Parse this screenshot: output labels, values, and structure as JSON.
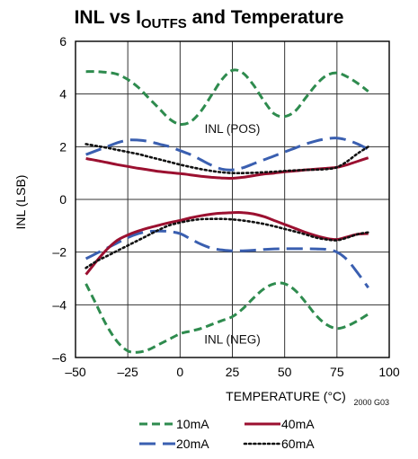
{
  "chart_data": {
    "type": "line",
    "title": "INL vs I",
    "title_subscript": "OUTFS",
    "title_suffix": " and Temperature",
    "xlabel": "TEMPERATURE (°C)",
    "ylabel": "INL (LSB)",
    "xlim": [
      -50,
      100
    ],
    "ylim": [
      -6,
      6
    ],
    "x_ticks": [
      -50,
      -25,
      0,
      25,
      50,
      75,
      100
    ],
    "x_tick_labels": [
      "–50",
      "–25",
      "0",
      "25",
      "50",
      "75",
      "100"
    ],
    "y_ticks": [
      -6,
      -4,
      -2,
      0,
      2,
      4,
      6
    ],
    "y_tick_labels": [
      "–6",
      "–4",
      "–2",
      "0",
      "2",
      "4",
      "6"
    ],
    "grid": true,
    "legend_position": "bottom",
    "annotations": [
      {
        "text": "INL (POS)",
        "x": 25,
        "y": 2.7
      },
      {
        "text": "INL (NEG)",
        "x": 25,
        "y": -5.3
      }
    ],
    "note": "2000 G03",
    "series": [
      {
        "name": "10mA",
        "group": "INL (POS)",
        "color": "#2e8b4e",
        "style": "dashed",
        "x": [
          -45,
          -40,
          -35,
          -30,
          -25,
          -20,
          -15,
          -10,
          -5,
          0,
          5,
          10,
          15,
          20,
          25,
          30,
          35,
          40,
          45,
          50,
          55,
          60,
          65,
          70,
          75,
          80,
          85,
          90
        ],
        "y": [
          4.85,
          4.85,
          4.82,
          4.75,
          4.55,
          4.25,
          3.85,
          3.45,
          3.05,
          2.85,
          2.95,
          3.35,
          3.95,
          4.55,
          4.9,
          4.8,
          4.35,
          3.75,
          3.25,
          3.15,
          3.35,
          3.85,
          4.35,
          4.7,
          4.8,
          4.65,
          4.4,
          4.1
        ]
      },
      {
        "name": "10mA",
        "group": "INL (NEG)",
        "color": "#2e8b4e",
        "style": "dashed",
        "x": [
          -45,
          -40,
          -35,
          -30,
          -25,
          -20,
          -15,
          -10,
          -5,
          0,
          5,
          10,
          15,
          20,
          25,
          30,
          35,
          40,
          45,
          50,
          55,
          60,
          65,
          70,
          75,
          80,
          85,
          90
        ],
        "y": [
          -3.2,
          -4.0,
          -4.8,
          -5.4,
          -5.75,
          -5.8,
          -5.7,
          -5.5,
          -5.3,
          -5.1,
          -5.0,
          -4.9,
          -4.75,
          -4.6,
          -4.45,
          -4.15,
          -3.75,
          -3.4,
          -3.2,
          -3.2,
          -3.45,
          -3.9,
          -4.4,
          -4.75,
          -4.9,
          -4.8,
          -4.6,
          -4.35
        ]
      },
      {
        "name": "20mA",
        "group": "INL (POS)",
        "color": "#3a5fb0",
        "style": "longdash",
        "x": [
          -45,
          -40,
          -35,
          -30,
          -25,
          -20,
          -15,
          -10,
          -5,
          0,
          5,
          10,
          15,
          20,
          25,
          30,
          35,
          40,
          45,
          50,
          55,
          60,
          65,
          70,
          75,
          80,
          85,
          90
        ],
        "y": [
          1.7,
          1.85,
          2.0,
          2.15,
          2.25,
          2.25,
          2.2,
          2.1,
          2.0,
          1.85,
          1.7,
          1.5,
          1.3,
          1.15,
          1.12,
          1.2,
          1.35,
          1.5,
          1.65,
          1.8,
          1.95,
          2.1,
          2.22,
          2.3,
          2.33,
          2.25,
          2.1,
          1.9
        ]
      },
      {
        "name": "20mA",
        "group": "INL (NEG)",
        "color": "#3a5fb0",
        "style": "longdash",
        "x": [
          -45,
          -40,
          -35,
          -30,
          -25,
          -20,
          -15,
          -10,
          -5,
          0,
          5,
          10,
          15,
          20,
          25,
          30,
          35,
          40,
          45,
          50,
          55,
          60,
          65,
          70,
          75,
          80,
          85,
          90
        ],
        "y": [
          -2.25,
          -2.05,
          -1.85,
          -1.65,
          -1.45,
          -1.3,
          -1.22,
          -1.2,
          -1.22,
          -1.3,
          -1.5,
          -1.7,
          -1.85,
          -1.92,
          -1.95,
          -1.95,
          -1.93,
          -1.9,
          -1.88,
          -1.87,
          -1.87,
          -1.87,
          -1.88,
          -1.9,
          -2.0,
          -2.3,
          -2.8,
          -3.35
        ]
      },
      {
        "name": "40mA",
        "group": "INL (POS)",
        "color": "#9b1030",
        "style": "solid",
        "x": [
          -45,
          -40,
          -35,
          -30,
          -25,
          -20,
          -15,
          -10,
          -5,
          0,
          5,
          10,
          15,
          20,
          25,
          30,
          35,
          40,
          45,
          50,
          55,
          60,
          65,
          70,
          75,
          80,
          85,
          90
        ],
        "y": [
          1.55,
          1.48,
          1.4,
          1.32,
          1.25,
          1.18,
          1.12,
          1.06,
          1.02,
          0.98,
          0.93,
          0.88,
          0.84,
          0.81,
          0.8,
          0.84,
          0.9,
          0.96,
          1.0,
          1.05,
          1.08,
          1.12,
          1.15,
          1.18,
          1.22,
          1.32,
          1.45,
          1.58
        ]
      },
      {
        "name": "40mA",
        "group": "INL (NEG)",
        "color": "#9b1030",
        "style": "solid",
        "x": [
          -45,
          -40,
          -35,
          -30,
          -25,
          -20,
          -15,
          -10,
          -5,
          0,
          5,
          10,
          15,
          20,
          25,
          30,
          35,
          40,
          45,
          50,
          55,
          60,
          65,
          70,
          75,
          80,
          85,
          90
        ],
        "y": [
          -2.85,
          -2.35,
          -1.9,
          -1.55,
          -1.35,
          -1.2,
          -1.08,
          -0.98,
          -0.88,
          -0.8,
          -0.7,
          -0.62,
          -0.56,
          -0.52,
          -0.5,
          -0.5,
          -0.55,
          -0.65,
          -0.8,
          -0.95,
          -1.1,
          -1.25,
          -1.38,
          -1.48,
          -1.52,
          -1.42,
          -1.32,
          -1.3
        ]
      },
      {
        "name": "60mA",
        "group": "INL (POS)",
        "color": "#111111",
        "style": "dotted",
        "x": [
          -45,
          -40,
          -35,
          -30,
          -25,
          -20,
          -15,
          -10,
          -5,
          0,
          5,
          10,
          15,
          20,
          25,
          30,
          35,
          40,
          45,
          50,
          55,
          60,
          65,
          70,
          75,
          80,
          85,
          90
        ],
        "y": [
          2.1,
          2.03,
          1.96,
          1.88,
          1.8,
          1.72,
          1.62,
          1.52,
          1.42,
          1.32,
          1.23,
          1.15,
          1.08,
          1.03,
          1.0,
          1.0,
          1.01,
          1.03,
          1.05,
          1.08,
          1.1,
          1.12,
          1.13,
          1.15,
          1.22,
          1.45,
          1.75,
          2.0
        ]
      },
      {
        "name": "60mA",
        "group": "INL (NEG)",
        "color": "#111111",
        "style": "dotted",
        "x": [
          -45,
          -40,
          -35,
          -30,
          -25,
          -20,
          -15,
          -10,
          -5,
          0,
          5,
          10,
          15,
          20,
          25,
          30,
          35,
          40,
          45,
          50,
          55,
          60,
          65,
          70,
          75,
          80,
          85,
          90
        ],
        "y": [
          -2.6,
          -2.35,
          -2.15,
          -1.95,
          -1.75,
          -1.55,
          -1.35,
          -1.15,
          -0.98,
          -0.88,
          -0.8,
          -0.75,
          -0.74,
          -0.74,
          -0.76,
          -0.8,
          -0.86,
          -0.93,
          -1.02,
          -1.12,
          -1.22,
          -1.33,
          -1.45,
          -1.52,
          -1.55,
          -1.45,
          -1.32,
          -1.25
        ]
      }
    ],
    "legend": [
      {
        "name": "10mA",
        "color": "#2e8b4e",
        "style": "dashed"
      },
      {
        "name": "40mA",
        "color": "#9b1030",
        "style": "solid"
      },
      {
        "name": "20mA",
        "color": "#3a5fb0",
        "style": "longdash"
      },
      {
        "name": "60mA",
        "color": "#111111",
        "style": "dotted"
      }
    ]
  }
}
